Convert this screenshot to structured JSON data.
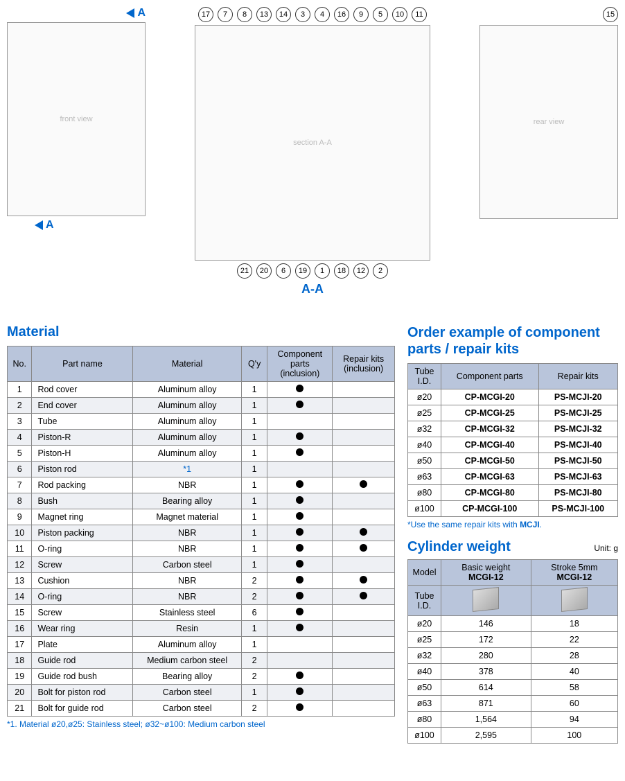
{
  "diagram": {
    "top_callouts": [
      "17",
      "7",
      "8",
      "13",
      "14",
      "3",
      "4",
      "16",
      "9",
      "5",
      "10",
      "11"
    ],
    "top_right_callout": "15",
    "bottom_callouts": [
      "21",
      "20",
      "6",
      "19",
      "1",
      "18",
      "12",
      "2"
    ],
    "section_a_top": "A",
    "section_a_bottom": "A",
    "section_aa": "A-A"
  },
  "material": {
    "title": "Material",
    "columns": [
      "No.",
      "Part name",
      "Material",
      "Q'y",
      "Component parts (inclusion)",
      "Repair kits (inclusion)"
    ],
    "rows": [
      {
        "no": "1",
        "name": "Rod cover",
        "mat": "Aluminum alloy",
        "qty": "1",
        "cp": true,
        "rk": false
      },
      {
        "no": "2",
        "name": "End cover",
        "mat": "Aluminum alloy",
        "qty": "1",
        "cp": true,
        "rk": false
      },
      {
        "no": "3",
        "name": "Tube",
        "mat": "Aluminum alloy",
        "qty": "1",
        "cp": false,
        "rk": false
      },
      {
        "no": "4",
        "name": "Piston-R",
        "mat": "Aluminum alloy",
        "qty": "1",
        "cp": true,
        "rk": false
      },
      {
        "no": "5",
        "name": "Piston-H",
        "mat": "Aluminum alloy",
        "qty": "1",
        "cp": true,
        "rk": false
      },
      {
        "no": "6",
        "name": "Piston rod",
        "mat": "*1",
        "qty": "1",
        "cp": false,
        "rk": false,
        "mat_blue": true
      },
      {
        "no": "7",
        "name": "Rod packing",
        "mat": "NBR",
        "qty": "1",
        "cp": true,
        "rk": true
      },
      {
        "no": "8",
        "name": "Bush",
        "mat": "Bearing alloy",
        "qty": "1",
        "cp": true,
        "rk": false
      },
      {
        "no": "9",
        "name": "Magnet ring",
        "mat": "Magnet material",
        "qty": "1",
        "cp": true,
        "rk": false
      },
      {
        "no": "10",
        "name": "Piston packing",
        "mat": "NBR",
        "qty": "1",
        "cp": true,
        "rk": true
      },
      {
        "no": "11",
        "name": "O-ring",
        "mat": "NBR",
        "qty": "1",
        "cp": true,
        "rk": true
      },
      {
        "no": "12",
        "name": "Screw",
        "mat": "Carbon steel",
        "qty": "1",
        "cp": true,
        "rk": false
      },
      {
        "no": "13",
        "name": "Cushion",
        "mat": "NBR",
        "qty": "2",
        "cp": true,
        "rk": true
      },
      {
        "no": "14",
        "name": "O-ring",
        "mat": "NBR",
        "qty": "2",
        "cp": true,
        "rk": true
      },
      {
        "no": "15",
        "name": "Screw",
        "mat": "Stainless steel",
        "qty": "6",
        "cp": true,
        "rk": false
      },
      {
        "no": "16",
        "name": "Wear ring",
        "mat": "Resin",
        "qty": "1",
        "cp": true,
        "rk": false
      },
      {
        "no": "17",
        "name": "Plate",
        "mat": "Aluminum alloy",
        "qty": "1",
        "cp": false,
        "rk": false
      },
      {
        "no": "18",
        "name": "Guide rod",
        "mat": "Medium carbon steel",
        "qty": "2",
        "cp": false,
        "rk": false
      },
      {
        "no": "19",
        "name": "Guide rod bush",
        "mat": "Bearing alloy",
        "qty": "2",
        "cp": true,
        "rk": false
      },
      {
        "no": "20",
        "name": "Bolt for piston rod",
        "mat": "Carbon steel",
        "qty": "1",
        "cp": true,
        "rk": false
      },
      {
        "no": "21",
        "name": "Bolt for guide rod",
        "mat": "Carbon steel",
        "qty": "2",
        "cp": true,
        "rk": false
      }
    ],
    "footnote": "*1. Material ø20,ø25: Stainless steel; ø32~ø100: Medium carbon steel"
  },
  "order": {
    "title": "Order example of component parts / repair kits",
    "columns": [
      "Tube I.D.",
      "Component parts",
      "Repair kits"
    ],
    "rows": [
      {
        "id": "ø20",
        "cp": "CP-MCGI-20",
        "rk": "PS-MCJI-20"
      },
      {
        "id": "ø25",
        "cp": "CP-MCGI-25",
        "rk": "PS-MCJI-25"
      },
      {
        "id": "ø32",
        "cp": "CP-MCGI-32",
        "rk": "PS-MCJI-32"
      },
      {
        "id": "ø40",
        "cp": "CP-MCGI-40",
        "rk": "PS-MCJI-40"
      },
      {
        "id": "ø50",
        "cp": "CP-MCGI-50",
        "rk": "PS-MCJI-50"
      },
      {
        "id": "ø63",
        "cp": "CP-MCGI-63",
        "rk": "PS-MCJI-63"
      },
      {
        "id": "ø80",
        "cp": "CP-MCGI-80",
        "rk": "PS-MCJI-80"
      },
      {
        "id": "ø100",
        "cp": "CP-MCGI-100",
        "rk": "PS-MCJI-100"
      }
    ],
    "footnote_prefix": "*Use the same repair kits with ",
    "footnote_bold": "MCJI",
    "footnote_suffix": "."
  },
  "weight": {
    "title": "Cylinder weight",
    "unit": "Unit: g",
    "col_model": "Model",
    "col_basic": "Basic weight",
    "col_stroke": "Stroke 5mm",
    "model_name": "MCGI-12",
    "col_tube": "Tube I.D.",
    "rows": [
      {
        "id": "ø20",
        "b": "146",
        "s": "18"
      },
      {
        "id": "ø25",
        "b": "172",
        "s": "22"
      },
      {
        "id": "ø32",
        "b": "280",
        "s": "28"
      },
      {
        "id": "ø40",
        "b": "378",
        "s": "40"
      },
      {
        "id": "ø50",
        "b": "614",
        "s": "58"
      },
      {
        "id": "ø63",
        "b": "871",
        "s": "60"
      },
      {
        "id": "ø80",
        "b": "1,564",
        "s": "94"
      },
      {
        "id": "ø100",
        "b": "2,595",
        "s": "100"
      }
    ]
  }
}
